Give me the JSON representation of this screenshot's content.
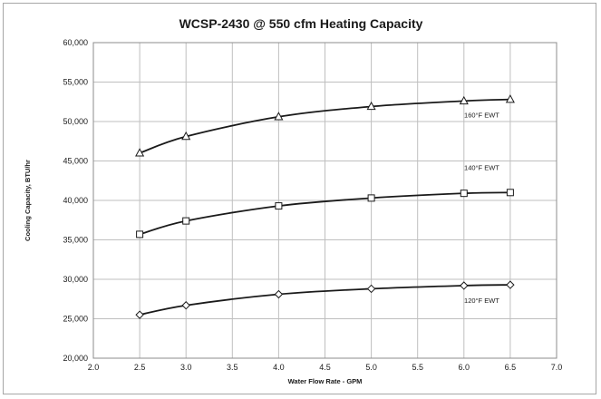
{
  "chart_data": {
    "type": "line",
    "title": "WCSP-2430 @ 550 cfm Heating Capacity",
    "xlabel": "Water Flow Rate - GPM",
    "ylabel": "Cooling Capacity, BTU/hr",
    "xlim": [
      2.0,
      7.0
    ],
    "ylim": [
      20000,
      60000
    ],
    "x_ticks": [
      "2.0",
      "2.5",
      "3.0",
      "3.5",
      "4.0",
      "4.5",
      "5.0",
      "5.5",
      "6.0",
      "6.5",
      "7.0"
    ],
    "y_ticks": [
      "20,000",
      "25,000",
      "30,000",
      "35,000",
      "40,000",
      "45,000",
      "50,000",
      "55,000",
      "60,000"
    ],
    "grid": true,
    "series": [
      {
        "name": "160°F EWT",
        "marker": "triangle",
        "x": [
          2.5,
          3.0,
          4.0,
          5.0,
          6.0,
          6.5
        ],
        "y": [
          46000,
          48100,
          50600,
          51900,
          52600,
          52800
        ]
      },
      {
        "name": "140°F EWT",
        "marker": "square",
        "x": [
          2.5,
          3.0,
          4.0,
          5.0,
          6.0,
          6.5
        ],
        "y": [
          35700,
          37400,
          39300,
          40300,
          40900,
          41000
        ]
      },
      {
        "name": "120°F EWT",
        "marker": "diamond",
        "x": [
          2.5,
          3.0,
          4.0,
          5.0,
          6.0,
          6.5
        ],
        "y": [
          25500,
          26700,
          28100,
          28800,
          29200,
          29300
        ]
      }
    ]
  }
}
